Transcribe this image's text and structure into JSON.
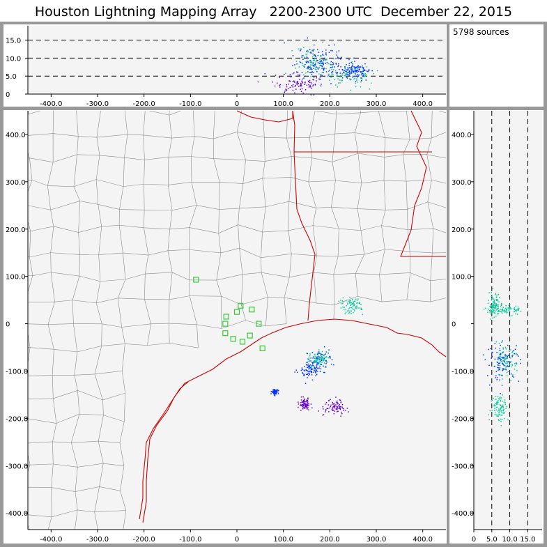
{
  "title": "Houston Lightning Mapping Array   2200-2300 UTC  December 22, 2015",
  "source_count_label": "5798 sources",
  "colors": {
    "frame": "#999999",
    "plot_bg": "#f4f4f4",
    "county_lines": "#8a8a8a",
    "state_lines": "#cc0000",
    "station_markers": "#33cc33",
    "source_low": "#6600cc",
    "source_mid": "#0033ff",
    "source_high": "#00cc99"
  },
  "chart_data": [
    {
      "name": "altitude-vs-east-west",
      "type": "scatter",
      "x_ticks": [
        "-400.0",
        "-300.0",
        "-200.0",
        "-100.0",
        "0",
        "100.0",
        "200.0",
        "300.0",
        "400.0"
      ],
      "y_ticks": [
        "0",
        "5.0",
        "10.0",
        "15.0"
      ],
      "xlim": [
        -450,
        450
      ],
      "ylim": [
        0,
        19
      ],
      "dashed_reference_lines": [
        5,
        10,
        15
      ],
      "clusters": [
        {
          "x": 165,
          "y": 9,
          "sx": 18,
          "sy": 2.0,
          "color": "source_high"
        },
        {
          "x": 165,
          "y": 9,
          "sx": 25,
          "sy": 3.0,
          "color": "source_mid"
        },
        {
          "x": 240,
          "y": 5.5,
          "sx": 25,
          "sy": 1.5,
          "color": "source_high"
        },
        {
          "x": 200,
          "y": 7.5,
          "sx": 35,
          "sy": 2.0,
          "color": "source_mid"
        },
        {
          "x": 130,
          "y": 3.0,
          "sx": 30,
          "sy": 1.5,
          "color": "source_low"
        },
        {
          "x": 255,
          "y": 6.5,
          "sx": 15,
          "sy": 1.0,
          "color": "source_mid"
        }
      ]
    },
    {
      "name": "plan-view-map",
      "type": "scatter",
      "x_ticks": [
        "-400.0",
        "-300.0",
        "-200.0",
        "-100.0",
        "0",
        "100.0",
        "200.0",
        "300.0",
        "400.0"
      ],
      "y_ticks": [
        "-400.0",
        "-300.0",
        "-200.0",
        "-100.0",
        "0",
        "100.0",
        "200.0",
        "300.0",
        "400.0"
      ],
      "xlim": [
        -450,
        450
      ],
      "ylim": [
        -435,
        450
      ],
      "stations": [
        {
          "x": -88,
          "y": 93
        },
        {
          "x": -23,
          "y": 15
        },
        {
          "x": -25,
          "y": 0
        },
        {
          "x": -25,
          "y": -20
        },
        {
          "x": 0,
          "y": 25
        },
        {
          "x": 8,
          "y": 38
        },
        {
          "x": 32,
          "y": 30
        },
        {
          "x": 47,
          "y": 0
        },
        {
          "x": 28,
          "y": -25
        },
        {
          "x": 12,
          "y": -38
        },
        {
          "x": -8,
          "y": -32
        },
        {
          "x": 55,
          "y": -52
        }
      ],
      "clusters": [
        {
          "x": 245,
          "y": 38,
          "sx": 12,
          "sy": 8,
          "color": "source_high"
        },
        {
          "x": 175,
          "y": -75,
          "sx": 15,
          "sy": 12,
          "color": "source_mid"
        },
        {
          "x": 175,
          "y": -75,
          "sx": 10,
          "sy": 8,
          "color": "source_high"
        },
        {
          "x": 155,
          "y": -95,
          "sx": 10,
          "sy": 8,
          "color": "source_mid"
        },
        {
          "x": 210,
          "y": -175,
          "sx": 12,
          "sy": 8,
          "color": "source_low"
        },
        {
          "x": 145,
          "y": -170,
          "sx": 6,
          "sy": 6,
          "color": "source_low"
        },
        {
          "x": 80,
          "y": -143,
          "sx": 3,
          "sy": 3,
          "color": "source_mid"
        }
      ]
    },
    {
      "name": "north-south-vs-altitude",
      "type": "scatter",
      "x_ticks": [
        "0",
        "5.0",
        "10.0",
        "15.0"
      ],
      "y_ticks": [
        "-400.0",
        "-300.0",
        "-200.0",
        "-100.0",
        "0",
        "100.0",
        "200.0",
        "300.0",
        "400.0"
      ],
      "xlim": [
        0,
        19
      ],
      "ylim": [
        -435,
        450
      ],
      "dashed_reference_lines": [
        5,
        10,
        15
      ],
      "clusters": [
        {
          "x": 5.5,
          "y": 40,
          "sx": 0.8,
          "sy": 12,
          "color": "source_high"
        },
        {
          "x": 8.5,
          "y": 30,
          "sx": 2.5,
          "sy": 5,
          "color": "source_high"
        },
        {
          "x": 8.5,
          "y": -80,
          "sx": 1.6,
          "sy": 15,
          "color": "source_high"
        },
        {
          "x": 8.0,
          "y": -80,
          "sx": 2.3,
          "sy": 20,
          "color": "source_mid"
        },
        {
          "x": 7.0,
          "y": -175,
          "sx": 1.2,
          "sy": 15,
          "color": "source_high"
        }
      ]
    }
  ]
}
